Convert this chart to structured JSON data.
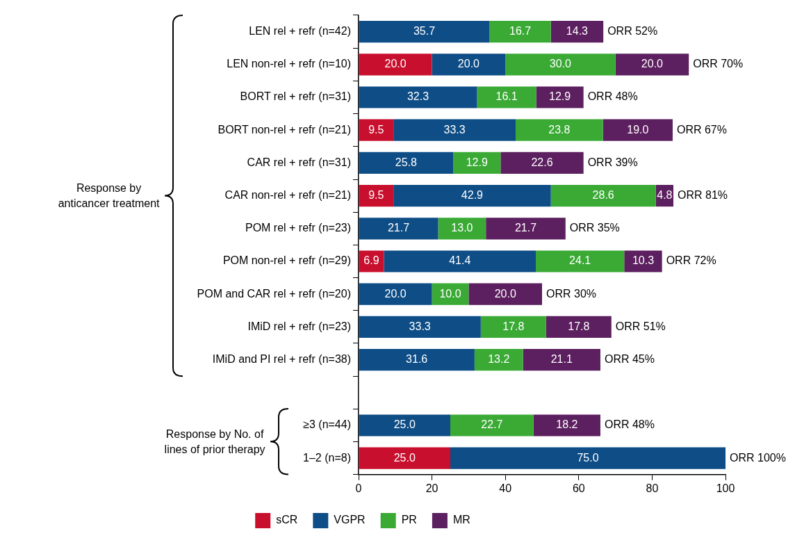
{
  "chart_data": {
    "type": "bar",
    "orientation": "horizontal",
    "stacked": true,
    "categories": [
      "LEN rel + refr (n=42)",
      "LEN non-rel + refr (n=10)",
      "BORT rel + refr (n=31)",
      "BORT non-rel + refr (n=21)",
      "CAR rel + refr (n=31)",
      "CAR non-rel + refr (n=21)",
      "POM rel + refr (n=23)",
      "POM non-rel + refr (n=29)",
      "POM and CAR rel + refr (n=20)",
      "IMiD rel + refr (n=23)",
      "IMiD and PI rel + refr (n=38)",
      null,
      "≥3 (n=44)",
      "1–2 (n=8)"
    ],
    "series": [
      {
        "name": "sCR",
        "color": "#c8102e",
        "values": [
          null,
          20.0,
          null,
          9.5,
          null,
          9.5,
          null,
          6.9,
          null,
          null,
          null,
          null,
          null,
          25.0
        ],
        "value_labels": [
          null,
          "20.0",
          null,
          "9.5",
          null,
          "9.5",
          null,
          "6.9",
          null,
          null,
          null,
          null,
          null,
          "25.0"
        ]
      },
      {
        "name": "VGPR",
        "color": "#0e4d86",
        "values": [
          35.7,
          20.0,
          32.3,
          33.3,
          25.8,
          42.9,
          21.7,
          41.4,
          20.0,
          33.3,
          31.6,
          null,
          25.0,
          75.0
        ],
        "value_labels": [
          "35.7",
          "20.0",
          "32.3",
          "33.3",
          "25.8",
          "42.9",
          "21.7",
          "41.4",
          "20.0",
          "33.3",
          "31.6",
          null,
          "25.0",
          "75.0"
        ]
      },
      {
        "name": "PR",
        "color": "#3aaa35",
        "values": [
          16.7,
          30.0,
          16.1,
          23.8,
          12.9,
          28.6,
          13.0,
          24.1,
          10.0,
          17.8,
          13.2,
          null,
          22.7,
          null
        ],
        "value_labels": [
          "16.7",
          "30.0",
          "16.1",
          "23.8",
          "12.9",
          "28.6",
          "13.0",
          "24.1",
          "10.0",
          "17.8",
          "13.2",
          null,
          "22.7",
          null
        ]
      },
      {
        "name": "MR",
        "color": "#5c1f5f",
        "values": [
          14.3,
          20.0,
          12.9,
          19.0,
          22.6,
          4.8,
          21.7,
          10.3,
          20.0,
          17.8,
          21.1,
          null,
          18.2,
          null
        ],
        "value_labels": [
          "14.3",
          "20.0",
          "12.9",
          "19.0",
          "22.6",
          "4.8",
          "21.7",
          "10.3",
          "20.0",
          "17.8",
          "21.1",
          null,
          "18.2",
          null
        ]
      }
    ],
    "totals": [
      "ORR 52%",
      "ORR 70%",
      "ORR 48%",
      "ORR 67%",
      "ORR 39%",
      "ORR 81%",
      "ORR 35%",
      "ORR 72%",
      "ORR 30%",
      "ORR 51%",
      "ORR 45%",
      null,
      "ORR 48%",
      "ORR 100%"
    ],
    "annotations": [
      "Response by anticancer treatment",
      "Response by No. of lines of prior therapy"
    ],
    "xlim": [
      0,
      100
    ],
    "xticks": [
      0,
      20,
      40,
      60,
      80,
      100
    ],
    "grid": false,
    "legend": "bottom"
  }
}
